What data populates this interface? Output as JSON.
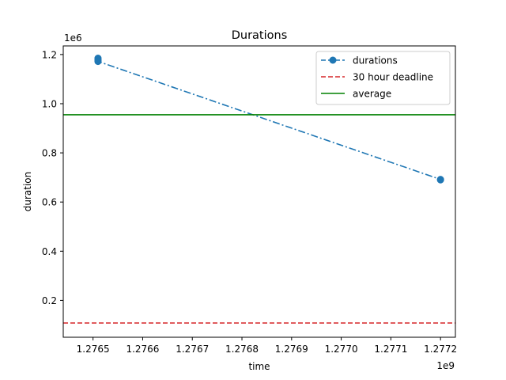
{
  "chart_data": {
    "type": "line",
    "title": "Durations",
    "xlabel": "time",
    "ylabel": "duration",
    "x_offset_label": "1e9",
    "y_offset_label": "1e6",
    "xlim": [
      1.27644,
      1.27723
    ],
    "ylim": [
      0.05,
      1.235
    ],
    "x_ticks": [
      {
        "value": 1.2765,
        "label": "1.2765"
      },
      {
        "value": 1.2766,
        "label": "1.2766"
      },
      {
        "value": 1.2767,
        "label": "1.2767"
      },
      {
        "value": 1.2768,
        "label": "1.2768"
      },
      {
        "value": 1.2769,
        "label": "1.2769"
      },
      {
        "value": 1.277,
        "label": "1.2770"
      },
      {
        "value": 1.2771,
        "label": "1.2771"
      },
      {
        "value": 1.2772,
        "label": "1.2772"
      }
    ],
    "y_ticks": [
      {
        "value": 0.2,
        "label": "0.2"
      },
      {
        "value": 0.4,
        "label": "0.4"
      },
      {
        "value": 0.6,
        "label": "0.6"
      },
      {
        "value": 0.8,
        "label": "0.8"
      },
      {
        "value": 1.0,
        "label": "1.0"
      },
      {
        "value": 1.2,
        "label": "1.2"
      }
    ],
    "grid": false,
    "legend_position": "upper right",
    "series": [
      {
        "name": "durations",
        "kind": "line",
        "style": "dashdot",
        "marker": "circle",
        "color": "#1f77b4",
        "x": [
          1.27651,
          1.27651,
          1.27651,
          1.27651,
          1.2772,
          1.2772
        ],
        "y": [
          1.185,
          1.18,
          1.176,
          1.172,
          0.692,
          0.69
        ]
      },
      {
        "name": "30 hour deadline",
        "kind": "hline",
        "style": "dashed",
        "color": "#d62728",
        "y": 0.108
      },
      {
        "name": "average",
        "kind": "hline",
        "style": "solid",
        "color": "#008000",
        "y": 0.955
      }
    ]
  }
}
